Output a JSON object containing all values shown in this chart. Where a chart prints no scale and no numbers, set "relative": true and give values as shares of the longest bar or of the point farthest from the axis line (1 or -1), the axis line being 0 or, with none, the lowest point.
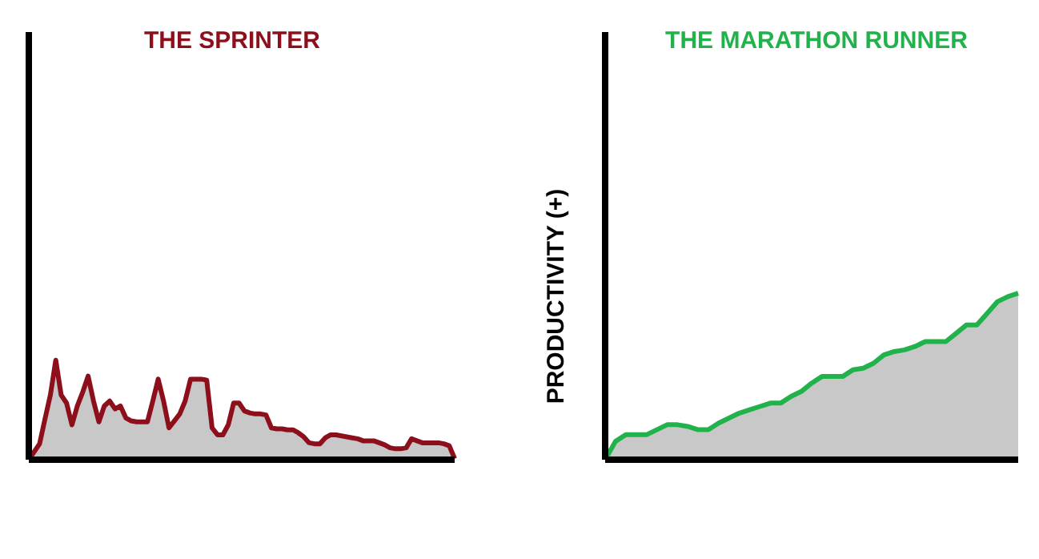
{
  "chart_data": [
    {
      "type": "area",
      "title": "THE SPRINTER",
      "relative": true,
      "categories": [
        null,
        null,
        null,
        null,
        null,
        null,
        null,
        null,
        null,
        null,
        null,
        null,
        null,
        null,
        null,
        null,
        null,
        null,
        null,
        null,
        null,
        null,
        null,
        null,
        null,
        null,
        null,
        null,
        null,
        null,
        null,
        null,
        null,
        null,
        null,
        null,
        null,
        null,
        null,
        null,
        null,
        null,
        null,
        null,
        null,
        null,
        null,
        null,
        null,
        null,
        null,
        null,
        null,
        null,
        null,
        null,
        null,
        null,
        null,
        null,
        null,
        null,
        null,
        null,
        null,
        null,
        null,
        null,
        null,
        null,
        null,
        null,
        null,
        null,
        null,
        null,
        null,
        null,
        null,
        null
      ],
      "series": [
        {
          "color": "#8e0f1c",
          "values": [
            0,
            0.08,
            0.16,
            0.41,
            0.65,
            1,
            0.65,
            0.57,
            0.35,
            0.54,
            0.68,
            0.84,
            0.59,
            0.38,
            0.54,
            0.59,
            0.51,
            0.54,
            0.42,
            0.39,
            0.38,
            0.38,
            0.38,
            0.59,
            0.81,
            0.59,
            0.32,
            0.39,
            0.46,
            0.59,
            0.81,
            0.81,
            0.81,
            0.8,
            0.32,
            0.25,
            0.25,
            0.35,
            0.57,
            0.57,
            0.49,
            0.47,
            0.46,
            0.46,
            0.45,
            0.32,
            0.31,
            0.31,
            0.3,
            0.3,
            0.27,
            0.23,
            0.17,
            0.16,
            0.16,
            0.22,
            0.25,
            0.25,
            0.24,
            0.23,
            0.22,
            0.21,
            0.19,
            0.19,
            0.19,
            0.17,
            0.15,
            0.12,
            0.11,
            0.11,
            0.12,
            0.21,
            0.19,
            0.17,
            0.17,
            0.17,
            0.17,
            0.16,
            0.14,
            0.01
          ]
        }
      ]
    },
    {
      "type": "area",
      "title": "THE MARATHON RUNNER",
      "ylabel": "PRODUCTIVITY (+)",
      "relative": true,
      "categories": [
        null,
        null,
        null,
        null,
        null,
        null,
        null,
        null,
        null,
        null,
        null,
        null,
        null,
        null,
        null,
        null,
        null,
        null,
        null,
        null,
        null,
        null,
        null,
        null,
        null,
        null,
        null,
        null,
        null,
        null,
        null,
        null,
        null,
        null,
        null,
        null,
        null,
        null,
        null,
        null,
        null
      ],
      "series": [
        {
          "color": "#22b24c",
          "values": [
            0,
            0.11,
            0.15,
            0.15,
            0.15,
            0.18,
            0.21,
            0.21,
            0.2,
            0.18,
            0.18,
            0.22,
            0.25,
            0.28,
            0.3,
            0.32,
            0.34,
            0.34,
            0.38,
            0.41,
            0.46,
            0.5,
            0.5,
            0.5,
            0.54,
            0.55,
            0.58,
            0.63,
            0.65,
            0.66,
            0.68,
            0.71,
            0.71,
            0.71,
            0.76,
            0.81,
            0.81,
            0.88,
            0.95,
            0.98,
            1
          ]
        }
      ]
    }
  ]
}
